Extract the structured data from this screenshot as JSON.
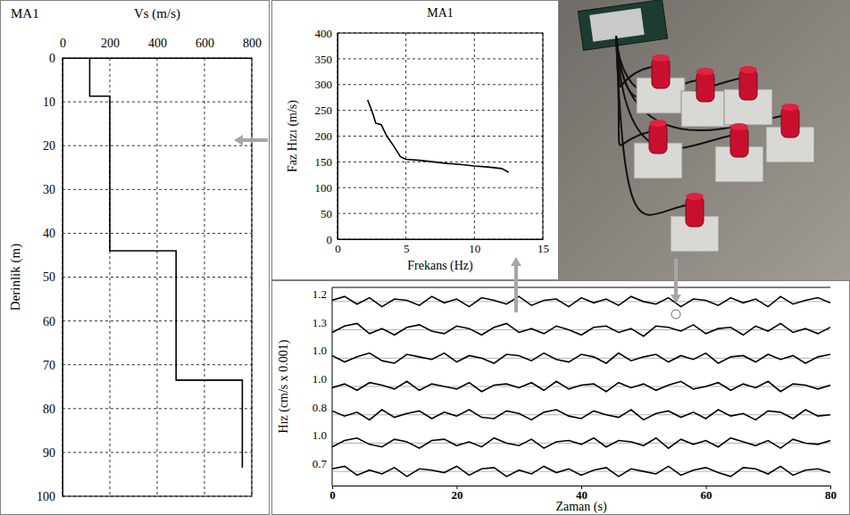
{
  "chart_data": [
    {
      "type": "line",
      "title": "MA1",
      "xlabel": "Vs (m/s)",
      "ylabel": "Derinlik (m)",
      "x": [
        115,
        115,
        200,
        200,
        480,
        480,
        760,
        760
      ],
      "values": [
        0,
        8.7,
        8.7,
        44,
        44,
        73.5,
        73.5,
        93.5
      ],
      "color": "#000000",
      "xlim": [
        0,
        800
      ],
      "xticks": [
        0,
        200,
        400,
        600,
        800
      ],
      "ylim": [
        0,
        100
      ],
      "yticks": [
        0,
        10,
        20,
        30,
        40,
        50,
        60,
        70,
        80,
        90,
        100
      ],
      "grid": true
    },
    {
      "type": "line",
      "title": "MA1",
      "xlabel": "Frekans (Hz)",
      "ylabel": "Faz Hızı (m/s)",
      "x": [
        2.2,
        2.5,
        2.8,
        3.2,
        3.6,
        4.0,
        4.6,
        5.0,
        6.0,
        7.0,
        8.0,
        9.0,
        10.0,
        11.0,
        12.0,
        12.5
      ],
      "values": [
        270,
        250,
        225,
        222,
        200,
        185,
        160,
        155,
        153,
        150,
        147,
        145,
        142,
        140,
        137,
        130
      ],
      "color": "#000000",
      "xlim": [
        0,
        15
      ],
      "xticks": [
        0,
        5,
        10,
        15
      ],
      "ylim": [
        0,
        400
      ],
      "yticks": [
        0,
        50,
        100,
        150,
        200,
        250,
        300,
        350,
        400
      ],
      "grid": true
    },
    {
      "type": "line",
      "xlabel": "Zaman (s)",
      "ylabel": "Hız (cm/s x 0.001)",
      "x": [
        0,
        2,
        4,
        6,
        8,
        10,
        12,
        14,
        16,
        18,
        20,
        22,
        24,
        26,
        28,
        30,
        32,
        34,
        36,
        38,
        40,
        42,
        44,
        46,
        48,
        50,
        52,
        54,
        56,
        58,
        60,
        62,
        64,
        66,
        68,
        70,
        72,
        74,
        76,
        78,
        80
      ],
      "xlim": [
        0,
        80
      ],
      "xticks": [
        0,
        20,
        40,
        60,
        80
      ],
      "ylim": [
        -1,
        1
      ],
      "tick_labels": "x",
      "color": "#000000",
      "series": [
        {
          "name": "1.2",
          "values": [
            0.1,
            0.4,
            -0.2,
            0.3,
            -0.4,
            0.2,
            0.1,
            -0.3,
            0.4,
            -0.1,
            0.2,
            -0.4,
            0.3,
            0.1,
            -0.2,
            0.4,
            -0.3,
            0.1,
            0.2,
            -0.4,
            0.3,
            -0.1,
            0.2,
            -0.3,
            0.4,
            0,
            -0.2,
            0.3,
            -0.4,
            0.2,
            0.1,
            -0.3,
            0.3,
            -0.1,
            0.2,
            -0.4,
            0.4,
            -0.2,
            0.1,
            0.3,
            -0.1
          ]
        },
        {
          "name": "1.3",
          "values": [
            -0.2,
            0.3,
            0.5,
            -0.3,
            0.1,
            -0.4,
            0.2,
            0.4,
            -0.1,
            -0.3,
            0.3,
            0.1,
            -0.4,
            0.2,
            0.5,
            -0.2,
            0.1,
            -0.3,
            0.3,
            0,
            -0.4,
            0.2,
            0.3,
            -0.2,
            0.1,
            -0.5,
            0.3,
            0.2,
            -0.1,
            0.4,
            -0.3,
            0.1,
            0.2,
            -0.4,
            0.3,
            -0.1,
            0.5,
            -0.2,
            0.1,
            -0.3,
            0.2
          ]
        },
        {
          "name": "1.0",
          "values": [
            0.2,
            -0.3,
            0.1,
            0.4,
            -0.2,
            -0.4,
            0.3,
            0.1,
            -0.1,
            0.4,
            -0.3,
            0.2,
            0,
            -0.4,
            0.3,
            0.2,
            -0.2,
            0.4,
            -0.1,
            -0.3,
            0.3,
            0.1,
            -0.4,
            0.4,
            -0.2,
            0.1,
            0.3,
            -0.3,
            0.2,
            -0.1,
            0.4,
            -0.4,
            0.1,
            0.2,
            -0.3,
            0.3,
            -0.1,
            0.2,
            -0.4,
            0.1,
            0.3
          ]
        },
        {
          "name": "1.0",
          "values": [
            -0.1,
            0.2,
            -0.3,
            0.3,
            0.1,
            -0.2,
            0.4,
            -0.3,
            0.2,
            0,
            -0.2,
            0.3,
            -0.4,
            0.1,
            0.2,
            -0.1,
            0.3,
            -0.3,
            0.4,
            -0.2,
            0.1,
            0.2,
            -0.4,
            0.3,
            -0.1,
            0.2,
            -0.3,
            0.1,
            0.4,
            -0.2,
            0,
            0.3,
            -0.3,
            0.2,
            -0.1,
            0.4,
            -0.4,
            0.2,
            0.1,
            -0.2,
            0.1
          ]
        },
        {
          "name": "0.8",
          "values": [
            0.3,
            -0.1,
            0.2,
            -0.4,
            0.4,
            -0.2,
            0.1,
            0.3,
            -0.3,
            0.2,
            -0.1,
            0.4,
            -0.2,
            -0.3,
            0.3,
            0.1,
            -0.4,
            0.2,
            0.4,
            -0.1,
            -0.3,
            0.3,
            0,
            -0.2,
            0.4,
            -0.4,
            0.1,
            0.3,
            -0.2,
            0.2,
            -0.3,
            0.4,
            -0.1,
            0.1,
            -0.4,
            0.3,
            0.2,
            -0.3,
            0.4,
            -0.1,
            0
          ]
        },
        {
          "name": "1.0",
          "values": [
            -0.3,
            0.2,
            0.4,
            -0.1,
            -0.3,
            0.3,
            0.1,
            -0.4,
            0.2,
            0.3,
            -0.2,
            0.1,
            -0.3,
            0.4,
            0,
            -0.2,
            0.3,
            -0.4,
            0.1,
            0.2,
            -0.1,
            0.4,
            -0.3,
            0.2,
            0.1,
            -0.2,
            0.4,
            -0.4,
            0.3,
            -0.1,
            0.2,
            -0.3,
            0.4,
            0.1,
            -0.2,
            0.2,
            -0.4,
            0.3,
            0,
            -0.1,
            0.2
          ]
        },
        {
          "name": "0.7",
          "values": [
            0.2,
            0.4,
            -0.3,
            0.1,
            -0.2,
            0.3,
            -0.4,
            0.2,
            0.1,
            -0.1,
            0.4,
            -0.3,
            0.2,
            0.3,
            -0.4,
            0.1,
            -0.2,
            0.4,
            -0.1,
            0.2,
            -0.3,
            0.1,
            0.3,
            -0.4,
            0.2,
            0,
            -0.2,
            0.4,
            -0.3,
            0.1,
            0.3,
            -0.1,
            -0.4,
            0.3,
            0.2,
            -0.2,
            0.4,
            -0.3,
            0.1,
            0.2,
            -0.1
          ]
        }
      ]
    }
  ]
}
